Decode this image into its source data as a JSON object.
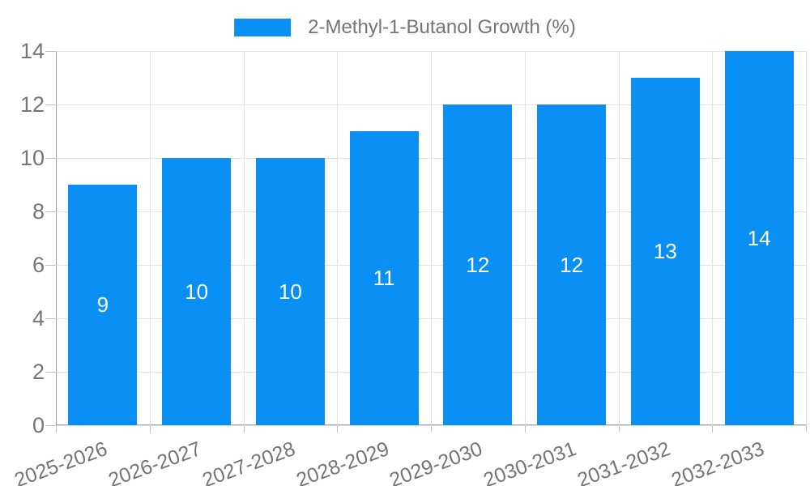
{
  "legend": {
    "label": "2-Methyl-1-Butanol Growth (%)"
  },
  "colors": {
    "bar": "#0a90f5",
    "axis_text": "#757575",
    "gridline": "#e3e3e3",
    "axis_line": "#9e9e9e",
    "value_label": "#ffffff"
  },
  "chart_data": {
    "type": "bar",
    "title": "",
    "xlabel": "",
    "ylabel": "",
    "series_name": "2-Methyl-1-Butanol Growth (%)",
    "categories": [
      "2025-2026",
      "2026-2027",
      "2027-2028",
      "2028-2029",
      "2029-2030",
      "2030-2031",
      "2031-2032",
      "2032-2033"
    ],
    "values": [
      9,
      10,
      10,
      11,
      12,
      12,
      13,
      14
    ],
    "value_labels": [
      "9",
      "10",
      "10",
      "11",
      "12",
      "12",
      "13",
      "14"
    ],
    "ylim": [
      0,
      14
    ],
    "yticks": [
      0,
      2,
      4,
      6,
      8,
      10,
      12,
      14
    ],
    "grid": true,
    "legend_position": "top",
    "bar_color": "#0a90f5",
    "value_label_position": "inside-center"
  }
}
